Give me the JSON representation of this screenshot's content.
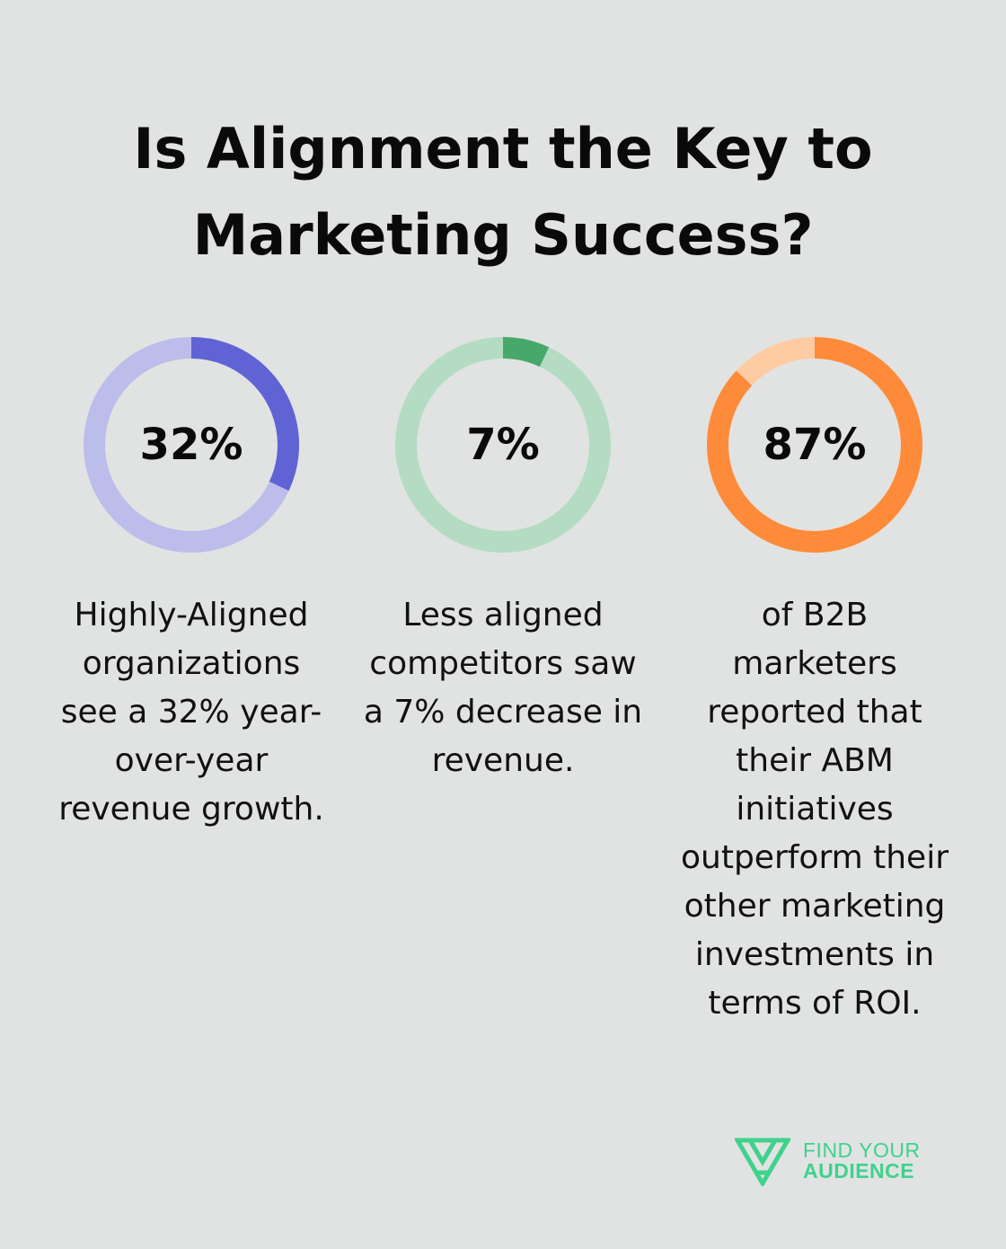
{
  "title_lines": [
    "Is Alignment the Key to",
    "Marketing Success?"
  ],
  "chart_data": {
    "type": "pie",
    "variant": "donut",
    "items": [
      {
        "value": 32,
        "label": "32%",
        "description_lines": [
          "Highly-Aligned",
          "organizations",
          "see a 32% year-",
          "over-year",
          "revenue growth."
        ],
        "color": "#5f63d4",
        "track_color": "#bcbdea"
      },
      {
        "value": 7,
        "label": "7%",
        "description_lines": [
          "Less aligned",
          "competitors saw",
          "a 7% decrease in",
          "revenue."
        ],
        "color": "#47a86c",
        "track_color": "#b3dcc2"
      },
      {
        "value": 87,
        "label": "87%",
        "description_lines": [
          "of B2B",
          "marketers",
          "reported that",
          "their ABM",
          "initiatives",
          "outperform their",
          "other marketing",
          "investments in",
          "terms of ROI."
        ],
        "color": "#fe8b39",
        "track_color": "#ffcba2"
      }
    ]
  },
  "logo": {
    "line1": "FIND YOUR",
    "line2": "AUDIENCE",
    "color": "#3fd28d",
    "icon": "find-your-audience-logo-icon"
  }
}
